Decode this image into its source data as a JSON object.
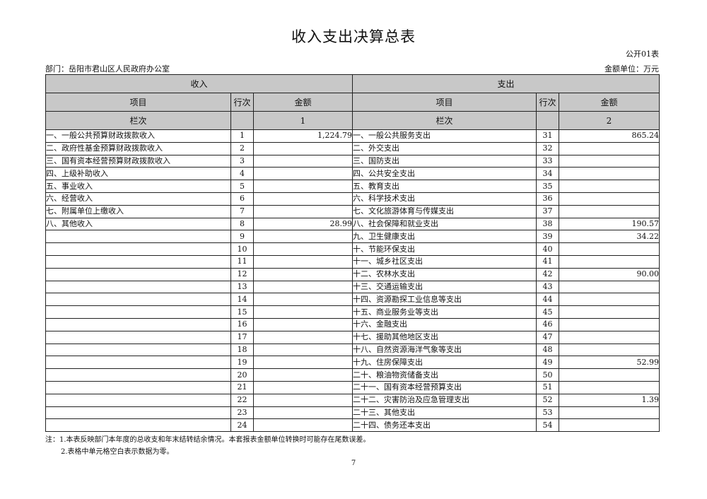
{
  "title": "收入支出决算总表",
  "form_no": "公开01表",
  "department": "部门：岳阳市君山区人民政府办公室",
  "unit": "金额单位：万元",
  "header": {
    "income": "收入",
    "expense": "支出",
    "item": "项目",
    "row_no": "行次",
    "amount": "金额",
    "column_no": "栏次",
    "income_col": "1",
    "expense_col": "2"
  },
  "rows": [
    {
      "in_item": "一、一般公共预算财政拨款收入",
      "in_no": "1",
      "in_amt": "1,224.79",
      "ex_item": "一、一般公共服务支出",
      "ex_no": "31",
      "ex_amt": "865.24"
    },
    {
      "in_item": "二、政府性基金预算财政拨款收入",
      "in_no": "2",
      "in_amt": "",
      "ex_item": "二、外交支出",
      "ex_no": "32",
      "ex_amt": ""
    },
    {
      "in_item": "三、国有资本经营预算财政拨款收入",
      "in_no": "3",
      "in_amt": "",
      "ex_item": "三、国防支出",
      "ex_no": "33",
      "ex_amt": ""
    },
    {
      "in_item": "四、上级补助收入",
      "in_no": "4",
      "in_amt": "",
      "ex_item": "四、公共安全支出",
      "ex_no": "34",
      "ex_amt": ""
    },
    {
      "in_item": "五、事业收入",
      "in_no": "5",
      "in_amt": "",
      "ex_item": "五、教育支出",
      "ex_no": "35",
      "ex_amt": ""
    },
    {
      "in_item": "六、经营收入",
      "in_no": "6",
      "in_amt": "",
      "ex_item": "六、科学技术支出",
      "ex_no": "36",
      "ex_amt": ""
    },
    {
      "in_item": "七、附属单位上缴收入",
      "in_no": "7",
      "in_amt": "",
      "ex_item": "七、文化旅游体育与传媒支出",
      "ex_no": "37",
      "ex_amt": ""
    },
    {
      "in_item": "八、其他收入",
      "in_no": "8",
      "in_amt": "28.99",
      "ex_item": "八、社会保障和就业支出",
      "ex_no": "38",
      "ex_amt": "190.57"
    },
    {
      "in_item": "",
      "in_no": "9",
      "in_amt": "",
      "ex_item": "九、卫生健康支出",
      "ex_no": "39",
      "ex_amt": "34.22"
    },
    {
      "in_item": "",
      "in_no": "10",
      "in_amt": "",
      "ex_item": "十、节能环保支出",
      "ex_no": "40",
      "ex_amt": ""
    },
    {
      "in_item": "",
      "in_no": "11",
      "in_amt": "",
      "ex_item": "十一、城乡社区支出",
      "ex_no": "41",
      "ex_amt": ""
    },
    {
      "in_item": "",
      "in_no": "12",
      "in_amt": "",
      "ex_item": "十二、农林水支出",
      "ex_no": "42",
      "ex_amt": "90.00"
    },
    {
      "in_item": "",
      "in_no": "13",
      "in_amt": "",
      "ex_item": "十三、交通运输支出",
      "ex_no": "43",
      "ex_amt": ""
    },
    {
      "in_item": "",
      "in_no": "14",
      "in_amt": "",
      "ex_item": "十四、资源勘探工业信息等支出",
      "ex_no": "44",
      "ex_amt": ""
    },
    {
      "in_item": "",
      "in_no": "15",
      "in_amt": "",
      "ex_item": "十五、商业服务业等支出",
      "ex_no": "45",
      "ex_amt": ""
    },
    {
      "in_item": "",
      "in_no": "16",
      "in_amt": "",
      "ex_item": "十六、金融支出",
      "ex_no": "46",
      "ex_amt": ""
    },
    {
      "in_item": "",
      "in_no": "17",
      "in_amt": "",
      "ex_item": "十七、援助其他地区支出",
      "ex_no": "47",
      "ex_amt": ""
    },
    {
      "in_item": "",
      "in_no": "18",
      "in_amt": "",
      "ex_item": "十八、自然资源海洋气象等支出",
      "ex_no": "48",
      "ex_amt": ""
    },
    {
      "in_item": "",
      "in_no": "19",
      "in_amt": "",
      "ex_item": "十九、住房保障支出",
      "ex_no": "49",
      "ex_amt": "52.99"
    },
    {
      "in_item": "",
      "in_no": "20",
      "in_amt": "",
      "ex_item": "二十、粮油物资储备支出",
      "ex_no": "50",
      "ex_amt": ""
    },
    {
      "in_item": "",
      "in_no": "21",
      "in_amt": "",
      "ex_item": "二十一、国有资本经营预算支出",
      "ex_no": "51",
      "ex_amt": ""
    },
    {
      "in_item": "",
      "in_no": "22",
      "in_amt": "",
      "ex_item": "二十二、灾害防治及应急管理支出",
      "ex_no": "52",
      "ex_amt": "1.39"
    },
    {
      "in_item": "",
      "in_no": "23",
      "in_amt": "",
      "ex_item": "二十三、其他支出",
      "ex_no": "53",
      "ex_amt": ""
    },
    {
      "in_item": "",
      "in_no": "24",
      "in_amt": "",
      "ex_item": "二十四、债务还本支出",
      "ex_no": "54",
      "ex_amt": ""
    }
  ],
  "notes": [
    "注：1.本表反映部门本年度的总收支和年末结转结余情况。本套报表金额单位转换时可能存在尾数误差。",
    "2.表格中单元格空白表示数据为零。"
  ],
  "page_number": "7"
}
